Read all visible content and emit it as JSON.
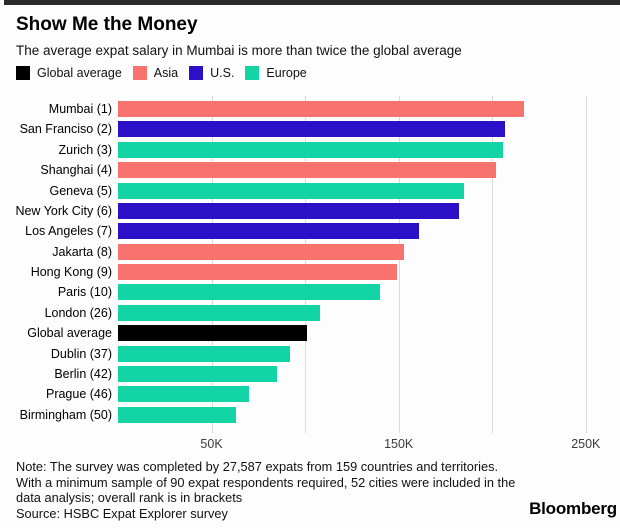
{
  "header": {
    "title": "Show Me the Money",
    "subtitle": "The average expat salary in Mumbai is more than twice the global average"
  },
  "legend": [
    {
      "label": "Global average",
      "color": "#000000"
    },
    {
      "label": "Asia",
      "color": "#F8736E"
    },
    {
      "label": "U.S.",
      "color": "#2B10C8"
    },
    {
      "label": "Europe",
      "color": "#12D4A5"
    }
  ],
  "chart_data": {
    "type": "bar",
    "orientation": "horizontal",
    "title": "Show Me the Money",
    "xlabel": "",
    "ylabel": "",
    "xlim": [
      0,
      264000
    ],
    "grid": true,
    "gridline_values": [
      50000,
      100000,
      150000,
      200000,
      250000
    ],
    "x_ticks": [
      {
        "value": 50000,
        "label": "50K"
      },
      {
        "value": 150000,
        "label": "150K"
      },
      {
        "value": 250000,
        "label": "250K"
      }
    ],
    "categories": [
      "Mumbai (1)",
      "San Franciso (2)",
      "Zurich (3)",
      "Shanghai (4)",
      "Geneva (5)",
      "New York City (6)",
      "Los Angeles (7)",
      "Jakarta (8)",
      "Hong Kong (9)",
      "Paris (10)",
      "London (26)",
      "Global average",
      "Dublin (37)",
      "Berlin (42)",
      "Prague (46)",
      "Birmingham (50)"
    ],
    "values": [
      217000,
      207000,
      206000,
      202000,
      185000,
      182000,
      161000,
      153000,
      149000,
      140000,
      108000,
      101000,
      92000,
      85000,
      70000,
      63000
    ],
    "groups": [
      "Asia",
      "U.S.",
      "Europe",
      "Asia",
      "Europe",
      "U.S.",
      "U.S.",
      "Asia",
      "Asia",
      "Europe",
      "Europe",
      "Global average",
      "Europe",
      "Europe",
      "Europe",
      "Europe"
    ],
    "legend_position": "top"
  },
  "footer": {
    "note_lines": [
      "Note: The survey was completed by 27,587 expats from 159 countries and territories.",
      "With a minimum sample of 90 expat respondents required, 52 cities were included in the",
      "data analysis; overall rank is in brackets",
      "Source: HSBC Expat Explorer survey"
    ],
    "brand": "Bloomberg"
  }
}
